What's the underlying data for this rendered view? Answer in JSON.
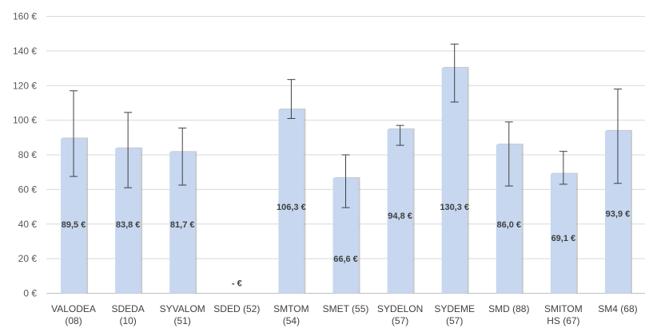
{
  "chart_data": {
    "type": "bar",
    "categories": [
      [
        "VALODEA",
        "(08)"
      ],
      [
        "SDEDA",
        "(10)"
      ],
      [
        "SYVALOM",
        "(51)"
      ],
      [
        "SDED (52)"
      ],
      [
        "SMTOM",
        "(54)"
      ],
      [
        "SMET (55)"
      ],
      [
        "SYDELON",
        "(57)"
      ],
      [
        "SYDEME",
        "(57)"
      ],
      [
        "SMD (88)"
      ],
      [
        "SMITOM",
        "HS (67)"
      ],
      [
        "SM4 (68)"
      ]
    ],
    "values": [
      89.5,
      83.8,
      81.7,
      0,
      106.3,
      66.6,
      94.8,
      130.3,
      86.0,
      69.1,
      93.9
    ],
    "error_low": [
      67.5,
      61,
      62.5,
      null,
      101,
      49.5,
      85.5,
      110.5,
      62,
      63,
      63.5
    ],
    "error_high": [
      117,
      104.5,
      95.5,
      null,
      123.5,
      80,
      97,
      144,
      99,
      82,
      118
    ],
    "data_labels": [
      "89,5 €",
      "83,8 €",
      "81,7 €",
      "-   €",
      "106,3 €",
      "66,6 €",
      "94,8 €",
      "130,3 €",
      "86,0 €",
      "69,1 €",
      "93,9 €"
    ],
    "data_label_values": [
      40,
      40,
      40,
      6,
      50,
      20,
      45,
      50,
      40,
      32,
      46
    ],
    "y_ticks": [
      0,
      20,
      40,
      60,
      80,
      100,
      120,
      140,
      160
    ],
    "y_tick_labels": [
      "0 €",
      "20 €",
      "40 €",
      "60 €",
      "80 €",
      "100 €",
      "120 €",
      "140 €",
      "160 €"
    ],
    "ylim": [
      0,
      160
    ],
    "grid": true,
    "colors": {
      "bar": "#c6d7ef",
      "bar_shadow": "#9aa0a8",
      "error_bar": "#404040",
      "grid": "#d9d9d9"
    }
  }
}
